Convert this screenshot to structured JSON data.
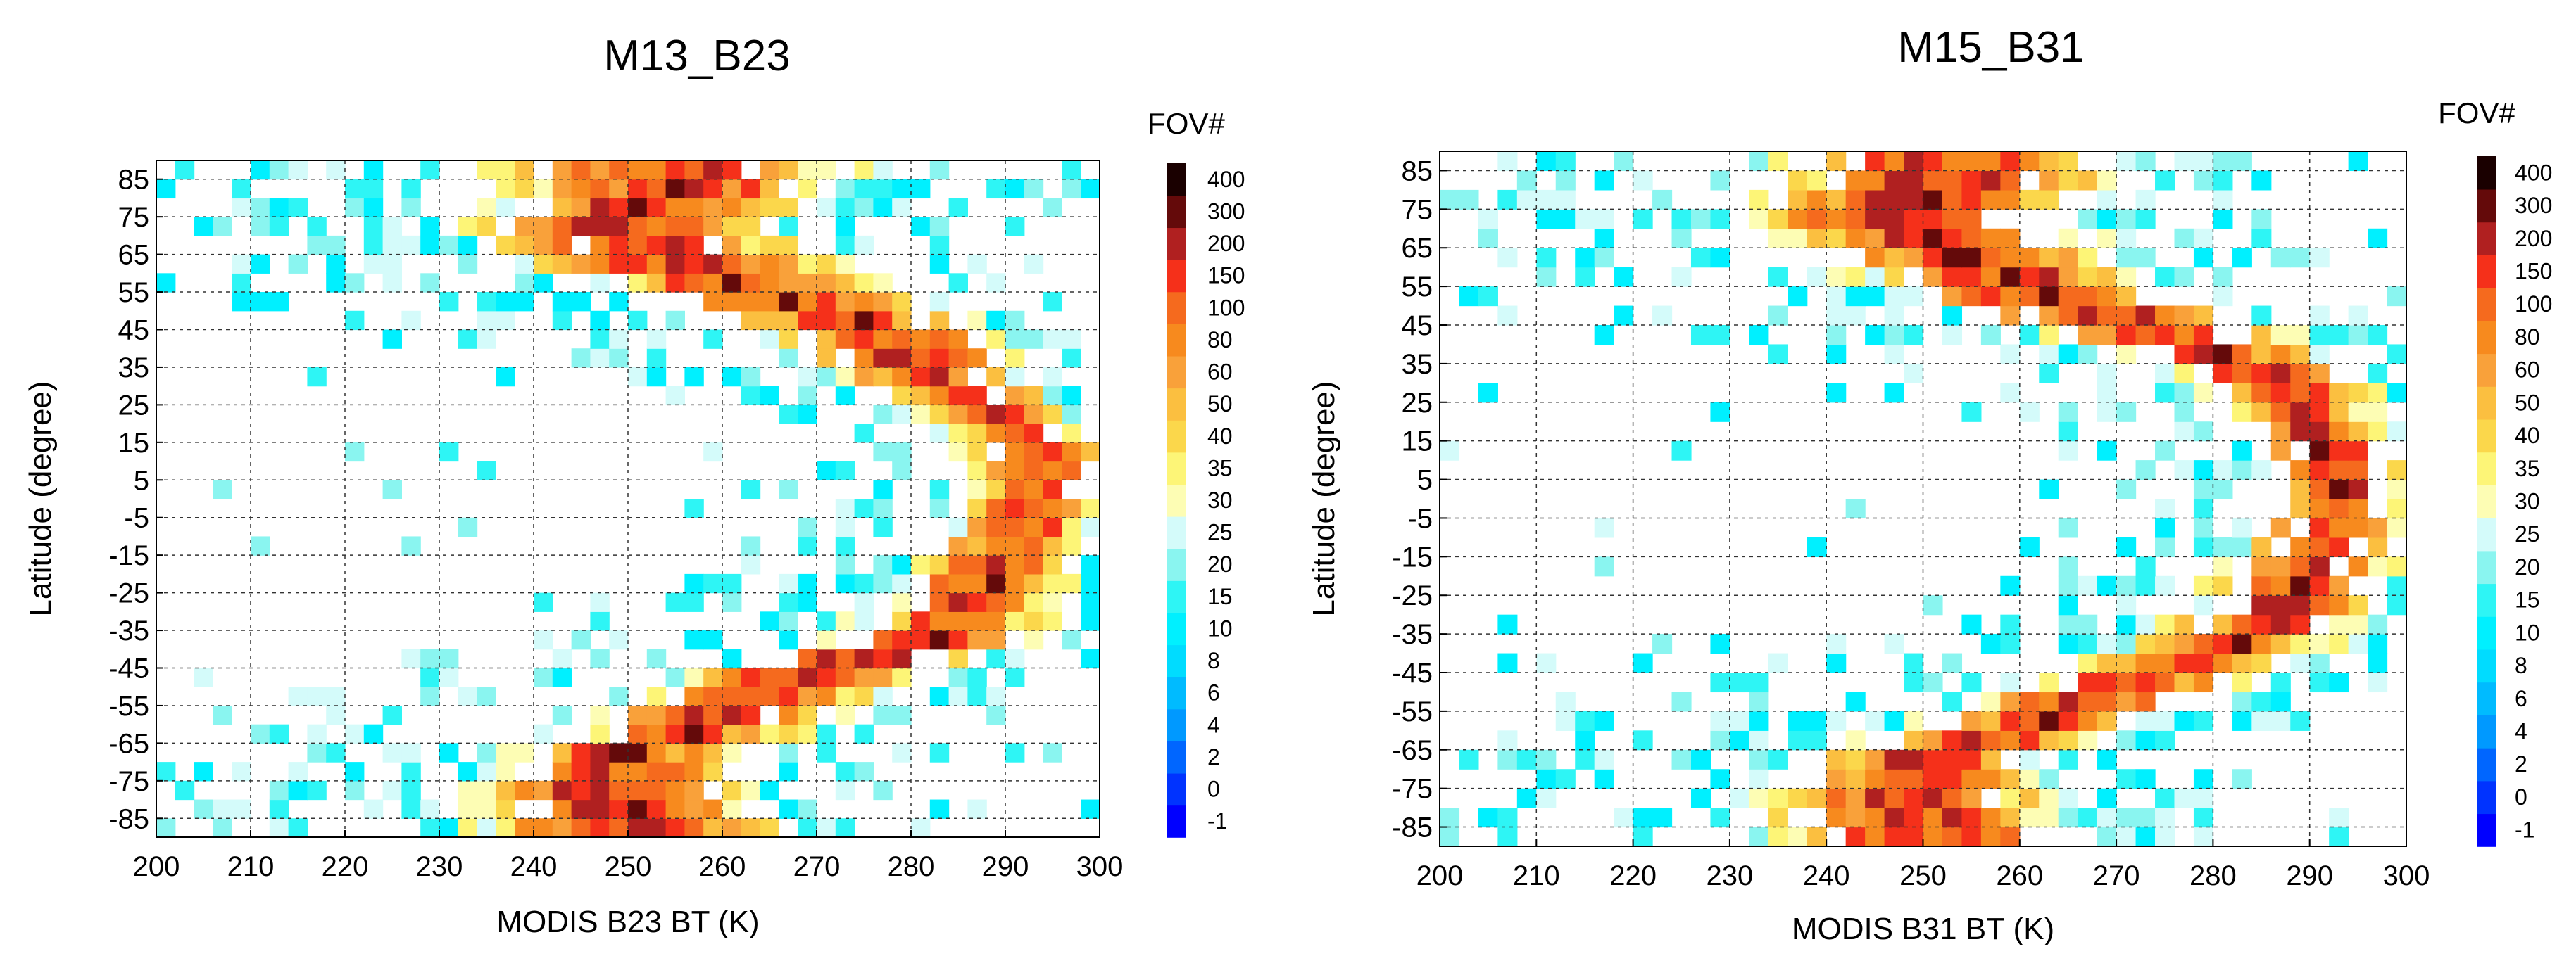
{
  "chart_data": [
    {
      "type": "heatmap",
      "title": "M13_B23",
      "xlabel": "MODIS B23 BT (K)",
      "ylabel": "Latitude (degree)",
      "xlim": [
        200,
        300
      ],
      "ylim": [
        -90,
        90
      ],
      "xticks": [
        "200",
        "210",
        "220",
        "230",
        "240",
        "250",
        "260",
        "270",
        "280",
        "290",
        "300"
      ],
      "yticks": [
        "-85",
        "-75",
        "-65",
        "-55",
        "-45",
        "-35",
        "-25",
        "-15",
        "-5",
        "5",
        "15",
        "25",
        "35",
        "45",
        "55",
        "65",
        "75",
        "85"
      ],
      "bin_width_K": 2,
      "bin_height_deg": 5,
      "colorbar_title": "FOV#",
      "colorbar_labels": [
        "-1",
        "0",
        "2",
        "4",
        "6",
        "8",
        "10",
        "15",
        "20",
        "25",
        "30",
        "35",
        "40",
        "50",
        "60",
        "80",
        "100",
        "150",
        "200",
        "300",
        "400"
      ],
      "colorbar_colors": [
        "#0000ff",
        "#0033ff",
        "#0066ff",
        "#0099ff",
        "#00bbff",
        "#00dcff",
        "#00f0ff",
        "#2ef5f5",
        "#8af5f0",
        "#d4fbfa",
        "#fdfdb4",
        "#fdf577",
        "#fbd74b",
        "#fbbf40",
        "#f9a13a",
        "#f78a1e",
        "#f56a1e",
        "#f5301a",
        "#b02020",
        "#640a0a",
        "#1a0000"
      ],
      "band_anchors": [
        {
          "lat": -87.5,
          "center": 250,
          "width": 16
        },
        {
          "lat": -77.5,
          "center": 248,
          "width": 14
        },
        {
          "lat": -67.5,
          "center": 250,
          "width": 12
        },
        {
          "lat": -57.5,
          "center": 260,
          "width": 12
        },
        {
          "lat": -47.5,
          "center": 268,
          "width": 12
        },
        {
          "lat": -37.5,
          "center": 282,
          "width": 10
        },
        {
          "lat": -27.5,
          "center": 286,
          "width": 9
        },
        {
          "lat": -17.5,
          "center": 289,
          "width": 8
        },
        {
          "lat": -7.5,
          "center": 292,
          "width": 7
        },
        {
          "lat": 2.5,
          "center": 294,
          "width": 7
        },
        {
          "lat": 12.5,
          "center": 293,
          "width": 7
        },
        {
          "lat": 22.5,
          "center": 289,
          "width": 8
        },
        {
          "lat": 32.5,
          "center": 282,
          "width": 10
        },
        {
          "lat": 42.5,
          "center": 278,
          "width": 12
        },
        {
          "lat": 52.5,
          "center": 268,
          "width": 14
        },
        {
          "lat": 62.5,
          "center": 256,
          "width": 16
        },
        {
          "lat": 72.5,
          "center": 248,
          "width": 16
        },
        {
          "lat": 82.5,
          "center": 255,
          "width": 18
        },
        {
          "lat": 87.5,
          "center": 255,
          "width": 18
        }
      ]
    },
    {
      "type": "heatmap",
      "title": "M15_B31",
      "xlabel": "MODIS B31 BT (K)",
      "ylabel": "Latitude (degree)",
      "xlim": [
        200,
        300
      ],
      "ylim": [
        -90,
        90
      ],
      "xticks": [
        "200",
        "210",
        "220",
        "230",
        "240",
        "250",
        "260",
        "270",
        "280",
        "290",
        "300"
      ],
      "yticks": [
        "-85",
        "-75",
        "-65",
        "-55",
        "-45",
        "-35",
        "-25",
        "-15",
        "-5",
        "5",
        "15",
        "25",
        "35",
        "45",
        "55",
        "65",
        "75",
        "85"
      ],
      "bin_width_K": 2,
      "bin_height_deg": 5,
      "colorbar_title": "FOV#",
      "colorbar_labels": [
        "-1",
        "0",
        "2",
        "4",
        "6",
        "8",
        "10",
        "15",
        "20",
        "25",
        "30",
        "35",
        "40",
        "50",
        "60",
        "80",
        "100",
        "150",
        "200",
        "300",
        "400"
      ],
      "colorbar_colors": [
        "#0000ff",
        "#0033ff",
        "#0066ff",
        "#0099ff",
        "#00bbff",
        "#00dcff",
        "#00f0ff",
        "#2ef5f5",
        "#8af5f0",
        "#d4fbfa",
        "#fdfdb4",
        "#fdf577",
        "#fbd74b",
        "#fbbf40",
        "#f9a13a",
        "#f78a1e",
        "#f56a1e",
        "#f5301a",
        "#b02020",
        "#640a0a",
        "#1a0000"
      ],
      "band_anchors": [
        {
          "lat": -87.5,
          "center": 250,
          "width": 16
        },
        {
          "lat": -77.5,
          "center": 248,
          "width": 14
        },
        {
          "lat": -67.5,
          "center": 250,
          "width": 12
        },
        {
          "lat": -57.5,
          "center": 262,
          "width": 12
        },
        {
          "lat": -47.5,
          "center": 272,
          "width": 12
        },
        {
          "lat": -37.5,
          "center": 282,
          "width": 10
        },
        {
          "lat": -27.5,
          "center": 288,
          "width": 9
        },
        {
          "lat": -17.5,
          "center": 290,
          "width": 8
        },
        {
          "lat": -7.5,
          "center": 292,
          "width": 7
        },
        {
          "lat": 2.5,
          "center": 293,
          "width": 7
        },
        {
          "lat": 12.5,
          "center": 292,
          "width": 7
        },
        {
          "lat": 22.5,
          "center": 289,
          "width": 8
        },
        {
          "lat": 32.5,
          "center": 285,
          "width": 10
        },
        {
          "lat": 42.5,
          "center": 276,
          "width": 12
        },
        {
          "lat": 52.5,
          "center": 262,
          "width": 14
        },
        {
          "lat": 62.5,
          "center": 255,
          "width": 16
        },
        {
          "lat": 72.5,
          "center": 248,
          "width": 16
        },
        {
          "lat": 82.5,
          "center": 252,
          "width": 18
        },
        {
          "lat": 87.5,
          "center": 252,
          "width": 18
        }
      ]
    }
  ]
}
